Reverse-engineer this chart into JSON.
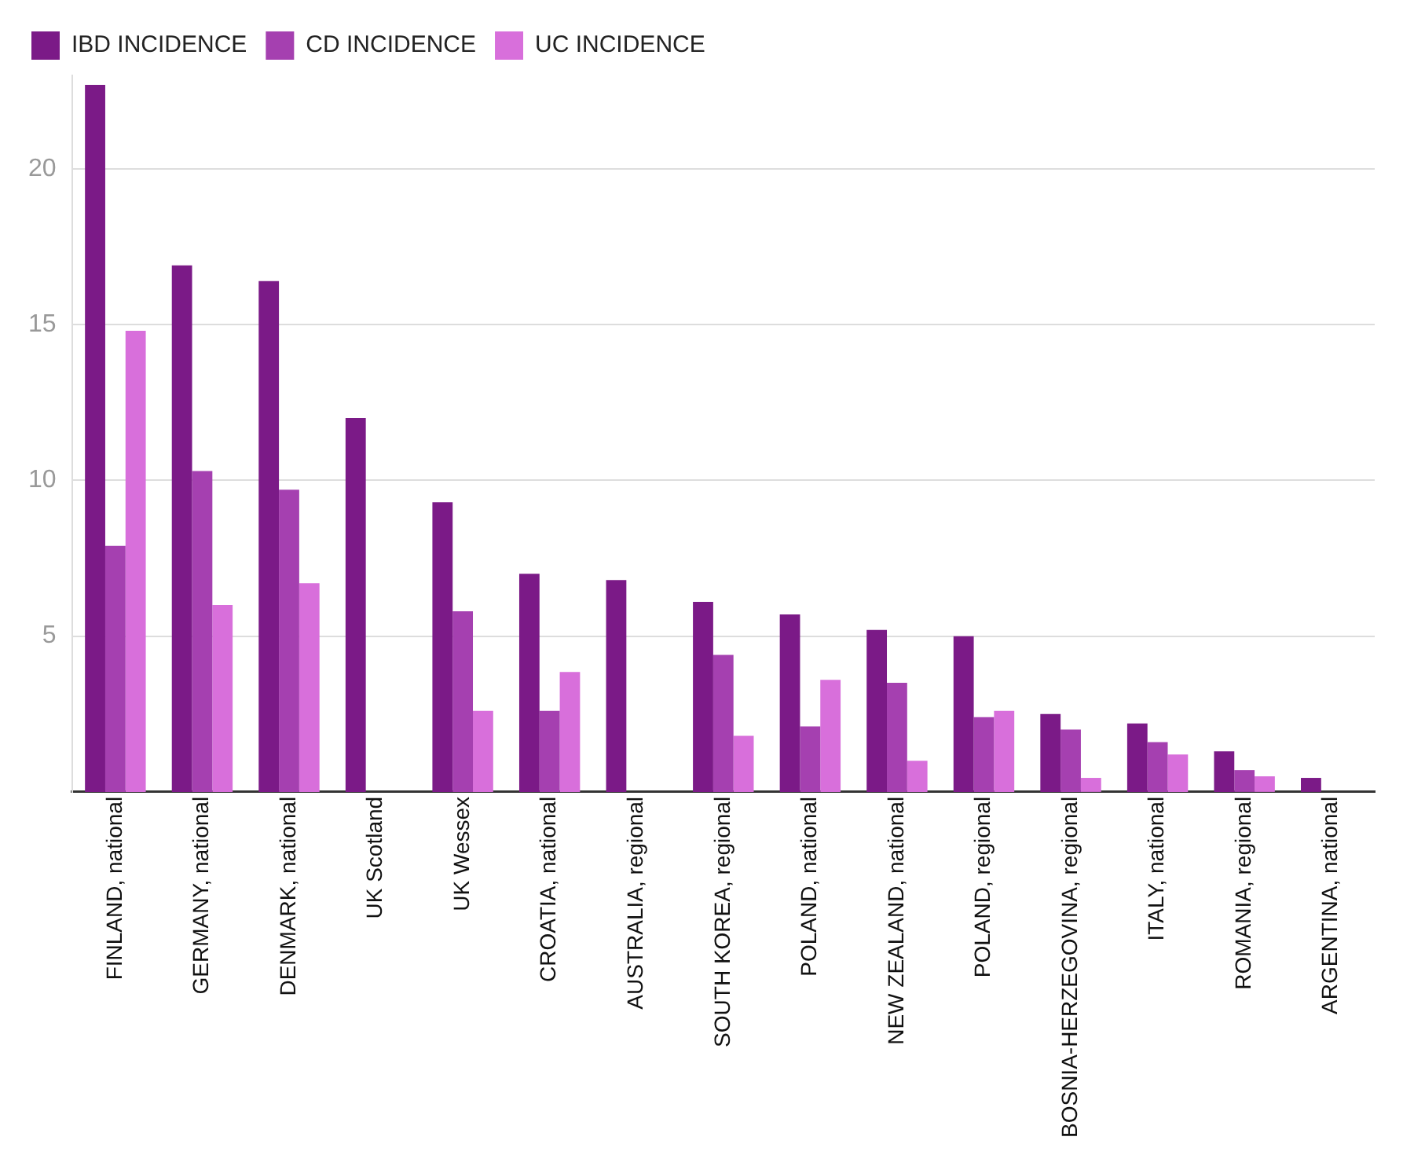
{
  "chart_data": {
    "type": "bar",
    "categories": [
      "FINLAND, national",
      "GERMANY, national",
      "DENMARK, national",
      "UK Scotland",
      "UK Wessex",
      "CROATIA, national",
      "AUSTRALIA, regional",
      "SOUTH KOREA, regional",
      "POLAND, national",
      "NEW ZEALAND, national",
      "POLAND, regional",
      "BOSNIA-HERZEGOVINA, regional",
      "ITALY, national",
      "ROMANIA, regional",
      "ARGENTINA, national"
    ],
    "series": [
      {
        "name": "IBD INCIDENCE",
        "color": "#7b1a87",
        "values": [
          22.7,
          16.9,
          16.4,
          12.0,
          9.3,
          7.0,
          6.8,
          6.1,
          5.7,
          5.2,
          5.0,
          2.5,
          2.2,
          1.3,
          0.45
        ]
      },
      {
        "name": "CD INCIDENCE",
        "color": "#a540b0",
        "values": [
          7.9,
          10.3,
          9.7,
          null,
          5.8,
          2.6,
          null,
          4.4,
          2.1,
          3.5,
          2.4,
          2.0,
          1.6,
          0.7,
          null
        ]
      },
      {
        "name": "UC INCIDENCE",
        "color": "#d86fdb",
        "values": [
          14.8,
          6.0,
          6.7,
          null,
          2.6,
          3.85,
          null,
          1.8,
          3.6,
          1.0,
          2.6,
          0.45,
          1.2,
          0.5,
          null
        ]
      }
    ],
    "ylim": [
      0,
      23
    ],
    "yticks": [
      5,
      10,
      15,
      20
    ],
    "grid": "y",
    "legend": "top left"
  }
}
